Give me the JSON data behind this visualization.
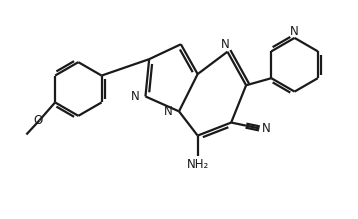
{
  "bg_color": "#ffffff",
  "line_color": "#1a1a1a",
  "bond_lw": 1.6,
  "figsize": [
    3.58,
    2.19
  ],
  "dpi": 100,
  "xlim": [
    0,
    9.5
  ],
  "ylim": [
    0,
    5.8
  ]
}
